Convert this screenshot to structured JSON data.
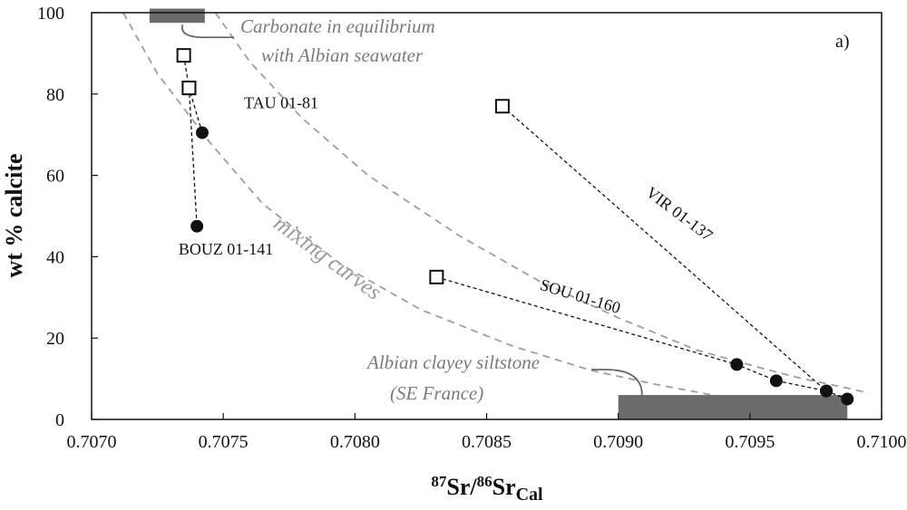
{
  "chart_data": {
    "type": "scatter",
    "panel_label": "a)",
    "xlabel_parts": {
      "sup1": "87",
      "main1": "Sr/",
      "sup2": "86",
      "main2": "Sr",
      "sub": "Cal"
    },
    "ylabel": "wt % calcite",
    "xlim": [
      0.707,
      0.71
    ],
    "ylim": [
      0,
      100
    ],
    "x_ticks": [
      {
        "value": 0.707,
        "label": "0.7070"
      },
      {
        "value": 0.7075,
        "label": "0.7075"
      },
      {
        "value": 0.708,
        "label": "0.7080"
      },
      {
        "value": 0.7085,
        "label": "0.7085"
      },
      {
        "value": 0.709,
        "label": "0.7090"
      },
      {
        "value": 0.7095,
        "label": "0.7095"
      },
      {
        "value": 0.71,
        "label": "0.7100"
      }
    ],
    "y_ticks": [
      {
        "value": 0,
        "label": "0"
      },
      {
        "value": 20,
        "label": "20"
      },
      {
        "value": 40,
        "label": "40"
      },
      {
        "value": 60,
        "label": "60"
      },
      {
        "value": 80,
        "label": "80"
      },
      {
        "value": 100,
        "label": "100"
      }
    ],
    "grid": false,
    "series": [
      {
        "name": "TAU 01-81",
        "label_at": {
          "x": 0.70772,
          "y": 76.5
        },
        "points": [
          {
            "x": 0.70735,
            "y": 89.5,
            "marker": "open-square"
          },
          {
            "x": 0.70737,
            "y": 81.5,
            "marker": "open-square"
          },
          {
            "x": 0.70742,
            "y": 70.5,
            "marker": "filled-circle"
          }
        ]
      },
      {
        "name": "BOUZ 01-141",
        "label_at": {
          "x": 0.70751,
          "y": 40.5
        },
        "points": [
          {
            "x": 0.70737,
            "y": 81.5,
            "marker": "open-square"
          },
          {
            "x": 0.7074,
            "y": 47.5,
            "marker": "filled-circle"
          }
        ]
      },
      {
        "name": "VIR 01-137",
        "label_at": {
          "x": 0.70922,
          "y": 49.5
        },
        "label_rotation": 37,
        "points": [
          {
            "x": 0.70856,
            "y": 77,
            "marker": "open-square"
          },
          {
            "x": 0.70979,
            "y": 7,
            "marker": "filled-circle"
          }
        ]
      },
      {
        "name": "SOU 01-160",
        "label_at": {
          "x": 0.70885,
          "y": 29
        },
        "label_rotation": 17,
        "points": [
          {
            "x": 0.70831,
            "y": 35,
            "marker": "open-square"
          },
          {
            "x": 0.70945,
            "y": 13.5,
            "marker": "filled-circle"
          },
          {
            "x": 0.7096,
            "y": 9.5,
            "marker": "filled-circle"
          },
          {
            "x": 0.70979,
            "y": 7,
            "marker": "filled-circle"
          },
          {
            "x": 0.70987,
            "y": 5,
            "marker": "filled-circle"
          }
        ]
      }
    ],
    "endmembers": [
      {
        "label_lines": [
          "Carbonate in equilibrium",
          "with Albian seawater"
        ],
        "x_range": [
          0.70722,
          0.70743
        ],
        "y_range": [
          97.5,
          101
        ]
      },
      {
        "label_lines": [
          "Albian clayey siltstone",
          "(SE France)"
        ],
        "x_range": [
          0.709,
          0.70987
        ],
        "y_range": [
          0,
          6
        ]
      }
    ],
    "mixing_curves": {
      "label": "mixing curves",
      "curves": [
        [
          [
            0.70712,
            100
          ],
          [
            0.70725,
            85
          ],
          [
            0.70745,
            68
          ],
          [
            0.70765,
            53
          ],
          [
            0.70795,
            38
          ],
          [
            0.70825,
            27
          ],
          [
            0.7086,
            18
          ],
          [
            0.7089,
            12
          ],
          [
            0.70915,
            8.5
          ],
          [
            0.7094,
            5.5
          ],
          [
            0.7096,
            3.5
          ],
          [
            0.7098,
            2
          ]
        ],
        [
          [
            0.70747,
            100
          ],
          [
            0.7076,
            88
          ],
          [
            0.7078,
            74
          ],
          [
            0.70805,
            60
          ],
          [
            0.7084,
            45
          ],
          [
            0.7087,
            34
          ],
          [
            0.709,
            25
          ],
          [
            0.7093,
            17
          ],
          [
            0.70955,
            12.5
          ],
          [
            0.7097,
            10
          ],
          [
            0.70985,
            8
          ],
          [
            0.70995,
            6.5
          ]
        ]
      ]
    },
    "colors": {
      "marker": "#111111",
      "series_line": "#111111",
      "mixing_curve": "#9e9e9e",
      "endmember_box": "#6b6b6b",
      "leader_line": "#666666",
      "annotation_text": "#7a7a7a"
    }
  }
}
